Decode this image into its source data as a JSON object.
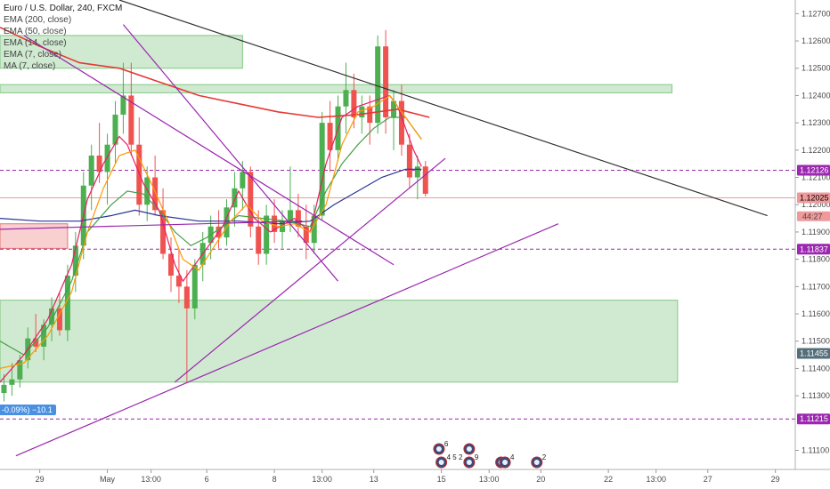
{
  "header": {
    "title": "Euro / U.S. Dollar, 240, FXCM",
    "indicators": [
      {
        "label": "EMA (200, close)",
        "color": "#e53935"
      },
      {
        "label": "EMA (50, close)",
        "color": "#283593"
      },
      {
        "label": "EMA (14, close)",
        "color": "#43a047"
      },
      {
        "label": "EMA (7, close)",
        "color": "#e91e63"
      },
      {
        "label": "MA (7, close)",
        "color": "#ff9800"
      }
    ]
  },
  "pct_label": "-0.09%) −10.1",
  "chart_data": {
    "type": "candlestick",
    "ylim": [
      1.1103,
      1.1275
    ],
    "xlim": [
      0,
      100
    ],
    "y_ticks": [
      "1.12700",
      "1.12600",
      "1.12500",
      "1.12400",
      "1.12300",
      "1.12200",
      "1.12100",
      "1.12000",
      "1.11900",
      "1.11800",
      "1.11700",
      "1.11600",
      "1.11500",
      "1.11400",
      "1.11300",
      "1.11100"
    ],
    "x_ticks": [
      {
        "label": "29",
        "x": 5.0
      },
      {
        "label": "May",
        "x": 13.5
      },
      {
        "label": "13:00",
        "x": 19.0
      },
      {
        "label": "6",
        "x": 26.0
      },
      {
        "label": "8",
        "x": 34.5
      },
      {
        "label": "13:00",
        "x": 40.5
      },
      {
        "label": "13",
        "x": 47.0
      },
      {
        "label": "15",
        "x": 55.5
      },
      {
        "label": "13:00",
        "x": 61.5
      },
      {
        "label": "20",
        "x": 68.0
      },
      {
        "label": "22",
        "x": 76.5
      },
      {
        "label": "13:00",
        "x": 82.5
      },
      {
        "label": "27",
        "x": 89.0
      },
      {
        "label": "29",
        "x": 97.5
      }
    ],
    "price_tags": [
      {
        "value": 1.12126,
        "label": "1.12126",
        "bg": "#9c27b0",
        "fg": "#ffffff"
      },
      {
        "value": 1.12025,
        "label": "1.12025",
        "bg": "#ef9a9a",
        "fg": "#000000"
      },
      {
        "value": 1.11837,
        "label": "1.11837",
        "bg": "#9c27b0",
        "fg": "#ffffff"
      },
      {
        "value": 1.11455,
        "label": "1.11455",
        "bg": "#546e7a",
        "fg": "#ffffff"
      },
      {
        "value": 1.11215,
        "label": "1.11215",
        "bg": "#9c27b0",
        "fg": "#ffffff"
      }
    ],
    "countdown": {
      "value": 1.11995,
      "label": "44:27"
    },
    "candles": [
      [
        0.5,
        1.1131,
        1.1138,
        1.1128,
        1.1134
      ],
      [
        1.5,
        1.1134,
        1.1142,
        1.113,
        1.1136
      ],
      [
        2.5,
        1.1136,
        1.1145,
        1.1133,
        1.1143
      ],
      [
        3.5,
        1.1143,
        1.1155,
        1.114,
        1.1151
      ],
      [
        4.5,
        1.1151,
        1.116,
        1.1146,
        1.1148
      ],
      [
        5.5,
        1.1148,
        1.1158,
        1.1143,
        1.1156
      ],
      [
        6.5,
        1.1156,
        1.1166,
        1.115,
        1.1162
      ],
      [
        7.5,
        1.1162,
        1.1168,
        1.1152,
        1.1154
      ],
      [
        8.5,
        1.1154,
        1.1178,
        1.115,
        1.1174
      ],
      [
        9.5,
        1.1174,
        1.119,
        1.1168,
        1.1185
      ],
      [
        10.5,
        1.1185,
        1.1212,
        1.118,
        1.1207
      ],
      [
        11.5,
        1.1207,
        1.1222,
        1.1198,
        1.1218
      ],
      [
        12.5,
        1.1218,
        1.123,
        1.1208,
        1.1212
      ],
      [
        13.5,
        1.1212,
        1.1226,
        1.12,
        1.1222
      ],
      [
        14.5,
        1.1222,
        1.1238,
        1.1215,
        1.1233
      ],
      [
        15.5,
        1.1233,
        1.1252,
        1.1226,
        1.124
      ],
      [
        16.5,
        1.124,
        1.1252,
        1.1218,
        1.1222
      ],
      [
        17.5,
        1.1222,
        1.1232,
        1.1196,
        1.12
      ],
      [
        18.5,
        1.12,
        1.1214,
        1.1194,
        1.121
      ],
      [
        19.5,
        1.121,
        1.1218,
        1.1196,
        1.1198
      ],
      [
        20.5,
        1.1198,
        1.1206,
        1.118,
        1.1182
      ],
      [
        21.5,
        1.1182,
        1.1188,
        1.1168,
        1.1174
      ],
      [
        22.5,
        1.1174,
        1.1184,
        1.1164,
        1.117
      ],
      [
        23.5,
        1.117,
        1.1176,
        1.1135,
        1.1162
      ],
      [
        24.5,
        1.1162,
        1.118,
        1.1158,
        1.1178
      ],
      [
        25.5,
        1.1178,
        1.119,
        1.1172,
        1.1186
      ],
      [
        26.5,
        1.1186,
        1.1196,
        1.118,
        1.1192
      ],
      [
        27.5,
        1.1192,
        1.1198,
        1.1184,
        1.1188
      ],
      [
        28.5,
        1.1188,
        1.1202,
        1.1185,
        1.1199
      ],
      [
        29.5,
        1.1199,
        1.1212,
        1.1192,
        1.1206
      ],
      [
        30.5,
        1.1206,
        1.1216,
        1.1198,
        1.1212
      ],
      [
        31.5,
        1.1212,
        1.1214,
        1.1188,
        1.1192
      ],
      [
        32.5,
        1.1192,
        1.1198,
        1.1178,
        1.1182
      ],
      [
        33.5,
        1.1182,
        1.12,
        1.1178,
        1.1196
      ],
      [
        34.5,
        1.1196,
        1.1202,
        1.1186,
        1.119
      ],
      [
        35.5,
        1.119,
        1.1198,
        1.1184,
        1.1194
      ],
      [
        36.5,
        1.1194,
        1.1214,
        1.119,
        1.1198
      ],
      [
        37.5,
        1.1198,
        1.1204,
        1.1188,
        1.1192
      ],
      [
        38.5,
        1.1192,
        1.12,
        1.118,
        1.1186
      ],
      [
        39.5,
        1.1186,
        1.12,
        1.1182,
        1.1196
      ],
      [
        40.5,
        1.1196,
        1.1234,
        1.1194,
        1.123
      ],
      [
        41.5,
        1.123,
        1.1238,
        1.1212,
        1.122
      ],
      [
        42.5,
        1.122,
        1.124,
        1.1216,
        1.1236
      ],
      [
        43.5,
        1.1236,
        1.1252,
        1.1226,
        1.1242
      ],
      [
        44.5,
        1.1242,
        1.1248,
        1.1228,
        1.1232
      ],
      [
        45.5,
        1.1232,
        1.124,
        1.1226,
        1.1236
      ],
      [
        46.5,
        1.1236,
        1.124,
        1.1222,
        1.123
      ],
      [
        47.5,
        1.123,
        1.1262,
        1.1226,
        1.1258
      ],
      [
        48.5,
        1.1258,
        1.1264,
        1.1226,
        1.1232
      ],
      [
        49.5,
        1.1232,
        1.1242,
        1.122,
        1.1238
      ],
      [
        50.5,
        1.1238,
        1.1244,
        1.1218,
        1.1222
      ],
      [
        51.5,
        1.1222,
        1.1226,
        1.1206,
        1.121
      ],
      [
        52.5,
        1.121,
        1.1218,
        1.1202,
        1.1214
      ],
      [
        53.5,
        1.1214,
        1.1216,
        1.1203,
        1.1204
      ]
    ],
    "lines": [
      {
        "name": "EMA (200, close)",
        "color": "#e53935",
        "width": 1.6,
        "points": [
          [
            0,
            1.1265
          ],
          [
            5,
            1.1258
          ],
          [
            10,
            1.1252
          ],
          [
            15,
            1.125
          ],
          [
            20,
            1.1245
          ],
          [
            25,
            1.124
          ],
          [
            30,
            1.1237
          ],
          [
            35,
            1.1234
          ],
          [
            40,
            1.1232
          ],
          [
            45,
            1.1233
          ],
          [
            50,
            1.1235
          ],
          [
            54,
            1.1232
          ]
        ]
      },
      {
        "name": "EMA (50, close)",
        "color": "#283593",
        "width": 1.2,
        "points": [
          [
            0,
            1.1195
          ],
          [
            5,
            1.1194
          ],
          [
            10,
            1.1194
          ],
          [
            14,
            1.1196
          ],
          [
            17,
            1.1198
          ],
          [
            20,
            1.1196
          ],
          [
            25,
            1.1194
          ],
          [
            30,
            1.1194
          ],
          [
            35,
            1.1193
          ],
          [
            39,
            1.1194
          ],
          [
            42,
            1.12
          ],
          [
            45,
            1.1205
          ],
          [
            48,
            1.121
          ],
          [
            51,
            1.1213
          ],
          [
            53,
            1.1213
          ]
        ]
      },
      {
        "name": "EMA (14, close)",
        "color": "#43a047",
        "width": 1.2,
        "points": [
          [
            0,
            1.115
          ],
          [
            3,
            1.1145
          ],
          [
            6,
            1.1155
          ],
          [
            9,
            1.1172
          ],
          [
            11,
            1.119
          ],
          [
            14,
            1.12
          ],
          [
            16,
            1.1205
          ],
          [
            18,
            1.1204
          ],
          [
            20,
            1.1198
          ],
          [
            22,
            1.119
          ],
          [
            24,
            1.1185
          ],
          [
            26,
            1.1188
          ],
          [
            28,
            1.1192
          ],
          [
            30,
            1.1196
          ],
          [
            33,
            1.1195
          ],
          [
            36,
            1.1194
          ],
          [
            39,
            1.1192
          ],
          [
            41,
            1.1205
          ],
          [
            43,
            1.1215
          ],
          [
            45,
            1.1222
          ],
          [
            47,
            1.1228
          ],
          [
            49,
            1.1232
          ],
          [
            51,
            1.1232
          ],
          [
            53,
            1.1224
          ]
        ]
      },
      {
        "name": "EMA (7, close)",
        "color": "#e91e63",
        "width": 1.2,
        "points": [
          [
            0,
            1.1135
          ],
          [
            3,
            1.1145
          ],
          [
            6,
            1.1158
          ],
          [
            9,
            1.1178
          ],
          [
            11,
            1.1202
          ],
          [
            13,
            1.1215
          ],
          [
            15,
            1.1225
          ],
          [
            16,
            1.1222
          ],
          [
            18,
            1.1208
          ],
          [
            20,
            1.1198
          ],
          [
            22,
            1.1178
          ],
          [
            23,
            1.1172
          ],
          [
            25,
            1.118
          ],
          [
            28,
            1.1192
          ],
          [
            30,
            1.1205
          ],
          [
            32,
            1.1195
          ],
          [
            34,
            1.119
          ],
          [
            37,
            1.1195
          ],
          [
            39,
            1.119
          ],
          [
            41,
            1.1215
          ],
          [
            43,
            1.1232
          ],
          [
            45,
            1.1236
          ],
          [
            47,
            1.1238
          ],
          [
            49,
            1.124
          ],
          [
            50,
            1.1236
          ],
          [
            52,
            1.122
          ],
          [
            53,
            1.1214
          ]
        ]
      },
      {
        "name": "MA (7, close)",
        "color": "#ff9800",
        "width": 1.2,
        "points": [
          [
            0,
            1.114
          ],
          [
            3,
            1.1142
          ],
          [
            6,
            1.1152
          ],
          [
            9,
            1.1168
          ],
          [
            11,
            1.119
          ],
          [
            13,
            1.1206
          ],
          [
            15,
            1.1218
          ],
          [
            17,
            1.122
          ],
          [
            19,
            1.1208
          ],
          [
            21,
            1.1195
          ],
          [
            23,
            1.118
          ],
          [
            25,
            1.1176
          ],
          [
            27,
            1.1185
          ],
          [
            29,
            1.1194
          ],
          [
            31,
            1.12
          ],
          [
            33,
            1.1194
          ],
          [
            35,
            1.1192
          ],
          [
            37,
            1.1193
          ],
          [
            39,
            1.119
          ],
          [
            41,
            1.12
          ],
          [
            43,
            1.1222
          ],
          [
            45,
            1.1234
          ],
          [
            47,
            1.1236
          ],
          [
            49,
            1.124
          ],
          [
            51,
            1.1232
          ],
          [
            53,
            1.1224
          ]
        ]
      }
    ],
    "zones": [
      {
        "x0": 0,
        "x1": 30.5,
        "y0": 1.1262,
        "y1": 1.125,
        "fill": "#c8e6c9",
        "stroke": "#81c784"
      },
      {
        "x0": 0,
        "x1": 84.5,
        "y0": 1.1244,
        "y1": 1.1241,
        "fill": "#c8e6c9",
        "stroke": "#81c784"
      },
      {
        "x0": 0,
        "x1": 8.5,
        "y0": 1.1193,
        "y1": 1.1184,
        "fill": "#f8c8c8",
        "stroke": "#e57373"
      },
      {
        "x0": 0,
        "x1": 85.2,
        "y0": 1.1165,
        "y1": 1.1135,
        "fill": "#c8e6c9",
        "stroke": "#81c784"
      }
    ],
    "h_lines": [
      {
        "y": 1.12126,
        "color": "#9c27b0",
        "dash": "4,3"
      },
      {
        "y": 1.12025,
        "color": "#ef9a9a",
        "dash": ""
      },
      {
        "y": 1.11837,
        "color": "#9c27b0",
        "dash": "4,3"
      },
      {
        "y": 1.11215,
        "color": "#9c27b0",
        "dash": "4,3"
      }
    ],
    "trend_lines": [
      {
        "x1": 15,
        "y1": 1.1275,
        "x2": 96.5,
        "y2": 1.1196,
        "color": "#333333"
      },
      {
        "x1": 2,
        "y1": 1.1108,
        "x2": 70.2,
        "y2": 1.1193,
        "color": "#9c27b0"
      },
      {
        "x1": 22,
        "y1": 1.1135,
        "x2": 56,
        "y2": 1.1217,
        "color": "#9c27b0"
      },
      {
        "x1": 0,
        "y1": 1.1191,
        "x2": 38,
        "y2": 1.1194,
        "color": "#9c27b0"
      },
      {
        "x1": 3,
        "y1": 1.1262,
        "x2": 49.5,
        "y2": 1.1178,
        "color": "#9c27b0"
      },
      {
        "x1": 15.5,
        "y1": 1.1266,
        "x2": 42.5,
        "y2": 1.1172,
        "color": "#9c27b0"
      }
    ],
    "events": [
      {
        "x": 55.2,
        "row": 0,
        "label": "6"
      },
      {
        "x": 59.0,
        "row": 0,
        "label": ""
      },
      {
        "x": 55.5,
        "row": 1,
        "label": "4 5 2"
      },
      {
        "x": 59.0,
        "row": 1,
        "label": "9"
      },
      {
        "x": 63.0,
        "row": 1,
        "label": ""
      },
      {
        "x": 63.5,
        "row": 1,
        "label": "4"
      },
      {
        "x": 67.5,
        "row": 1,
        "label": "2"
      }
    ]
  }
}
